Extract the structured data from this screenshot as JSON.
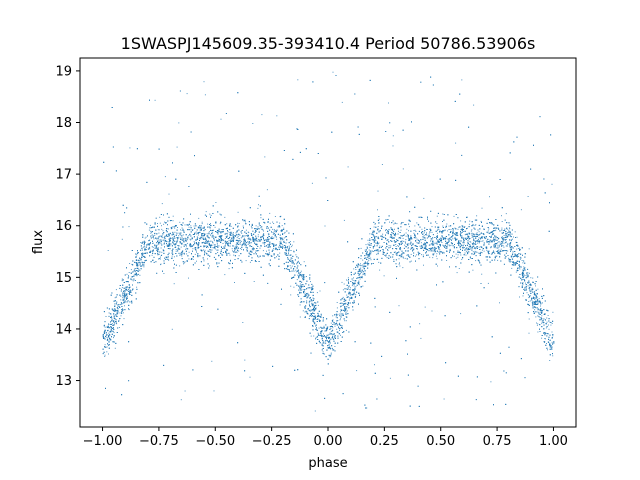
{
  "chart_data": {
    "type": "scatter",
    "title": "1SWASPJ145609.35-393410.4 Period 50786.53906s",
    "xlabel": "phase",
    "ylabel": "flux",
    "xlim": [
      -1.1,
      1.1
    ],
    "ylim": [
      12.1,
      19.25
    ],
    "xticks": [
      -1.0,
      -0.75,
      -0.5,
      -0.25,
      0.0,
      0.25,
      0.5,
      0.75,
      1.0
    ],
    "xtick_labels": [
      "−1.00",
      "−0.75",
      "−0.50",
      "−0.25",
      "0.00",
      "0.25",
      "0.50",
      "0.75",
      "1.00"
    ],
    "yticks": [
      13,
      14,
      15,
      16,
      17,
      18,
      19
    ],
    "ytick_labels": [
      "13",
      "14",
      "15",
      "16",
      "17",
      "18",
      "19"
    ],
    "grid": false,
    "marker_color": "#1f77b4",
    "series": [
      {
        "points_description_free": true,
        "baseline_flux": 15.7,
        "baseline_spread": 0.35,
        "eclipse_minima": [
          {
            "phase": -1.0,
            "flux": 13.7
          },
          {
            "phase": 0.0,
            "flux": 13.7
          },
          {
            "phase": 1.0,
            "flux": 13.7
          }
        ],
        "eclipse_half_width_phase": 0.2,
        "outlier_range": [
          12.4,
          19.0
        ]
      }
    ]
  }
}
